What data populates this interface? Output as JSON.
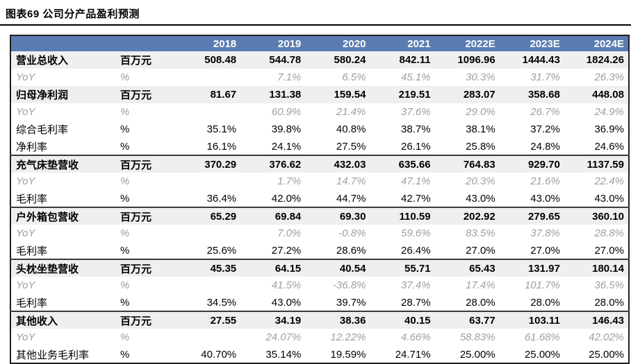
{
  "title": "图表69 公司分产品盈利预测",
  "colors": {
    "header_bg": "#5b7cb1",
    "section_bg": "#efefef",
    "yoy_text": "#9e9e9e",
    "border": "#1f1f1f"
  },
  "table": {
    "columns": [
      "",
      "",
      "2018",
      "2019",
      "2020",
      "2021",
      "2022E",
      "2023E",
      "2024E"
    ],
    "rows": [
      {
        "label": "营业总收入",
        "unit": "百万元",
        "style": "section",
        "separator": false,
        "values": [
          "508.48",
          "544.78",
          "580.24",
          "842.11",
          "1096.96",
          "1444.43",
          "1824.26"
        ]
      },
      {
        "label": "YoY",
        "unit": "%",
        "style": "yoy",
        "separator": false,
        "values": [
          "",
          "7.1%",
          "6.5%",
          "45.1%",
          "30.3%",
          "31.7%",
          "26.3%"
        ]
      },
      {
        "label": "归母净利润",
        "unit": "百万元",
        "style": "section",
        "separator": false,
        "values": [
          "81.67",
          "131.38",
          "159.54",
          "219.51",
          "283.07",
          "358.68",
          "448.08"
        ]
      },
      {
        "label": "YoY",
        "unit": "%",
        "style": "yoy",
        "separator": false,
        "values": [
          "",
          "60.9%",
          "21.4%",
          "37.6%",
          "29.0%",
          "26.7%",
          "24.9%"
        ]
      },
      {
        "label": "综合毛利率",
        "unit": "%",
        "style": "normal",
        "separator": false,
        "values": [
          "35.1%",
          "39.8%",
          "40.8%",
          "38.7%",
          "38.1%",
          "37.2%",
          "36.9%"
        ]
      },
      {
        "label": "净利率",
        "unit": "%",
        "style": "normal",
        "separator": false,
        "values": [
          "16.1%",
          "24.1%",
          "27.5%",
          "26.1%",
          "25.8%",
          "24.8%",
          "24.6%"
        ]
      },
      {
        "label": "充气床垫营收",
        "unit": "百万元",
        "style": "section",
        "separator": true,
        "values": [
          "370.29",
          "376.62",
          "432.03",
          "635.66",
          "764.83",
          "929.70",
          "1137.59"
        ]
      },
      {
        "label": "YoY",
        "unit": "%",
        "style": "yoy",
        "separator": false,
        "values": [
          "",
          "1.7%",
          "14.7%",
          "47.1%",
          "20.3%",
          "21.6%",
          "22.4%"
        ]
      },
      {
        "label": "毛利率",
        "unit": "%",
        "style": "normal",
        "separator": false,
        "values": [
          "36.4%",
          "42.0%",
          "44.7%",
          "42.7%",
          "43.0%",
          "43.0%",
          "43.0%"
        ]
      },
      {
        "label": "户外箱包营收",
        "unit": "百万元",
        "style": "section",
        "separator": true,
        "values": [
          "65.29",
          "69.84",
          "69.30",
          "110.59",
          "202.92",
          "279.65",
          "360.10"
        ]
      },
      {
        "label": "YoY",
        "unit": "%",
        "style": "yoy",
        "separator": false,
        "values": [
          "",
          "7.0%",
          "-0.8%",
          "59.6%",
          "83.5%",
          "37.8%",
          "28.8%"
        ]
      },
      {
        "label": "毛利率",
        "unit": "%",
        "style": "normal",
        "separator": false,
        "values": [
          "25.6%",
          "27.2%",
          "28.6%",
          "26.4%",
          "27.0%",
          "27.0%",
          "27.0%"
        ]
      },
      {
        "label": "头枕坐垫营收",
        "unit": "百万元",
        "style": "section",
        "separator": true,
        "values": [
          "45.35",
          "64.15",
          "40.54",
          "55.71",
          "65.43",
          "131.97",
          "180.14"
        ]
      },
      {
        "label": "YoY",
        "unit": "%",
        "style": "yoy",
        "separator": false,
        "values": [
          "",
          "41.5%",
          "-36.8%",
          "37.4%",
          "17.4%",
          "101.7%",
          "36.5%"
        ]
      },
      {
        "label": "毛利率",
        "unit": "%",
        "style": "normal",
        "separator": false,
        "values": [
          "34.5%",
          "43.0%",
          "39.7%",
          "28.7%",
          "28.0%",
          "28.0%",
          "28.0%"
        ]
      },
      {
        "label": "其他收入",
        "unit": "百万元",
        "style": "section",
        "separator": true,
        "values": [
          "27.55",
          "34.19",
          "38.36",
          "40.15",
          "63.77",
          "103.11",
          "146.43"
        ]
      },
      {
        "label": "YoY",
        "unit": "%",
        "style": "yoy",
        "separator": false,
        "values": [
          "",
          "24.07%",
          "12.22%",
          "4.66%",
          "58.83%",
          "61.68%",
          "42.02%"
        ]
      },
      {
        "label": "其他业务毛利率",
        "unit": "%",
        "style": "normal",
        "separator": false,
        "values": [
          "40.70%",
          "35.14%",
          "19.59%",
          "24.71%",
          "25.00%",
          "25.00%",
          "25.00%"
        ]
      }
    ]
  }
}
